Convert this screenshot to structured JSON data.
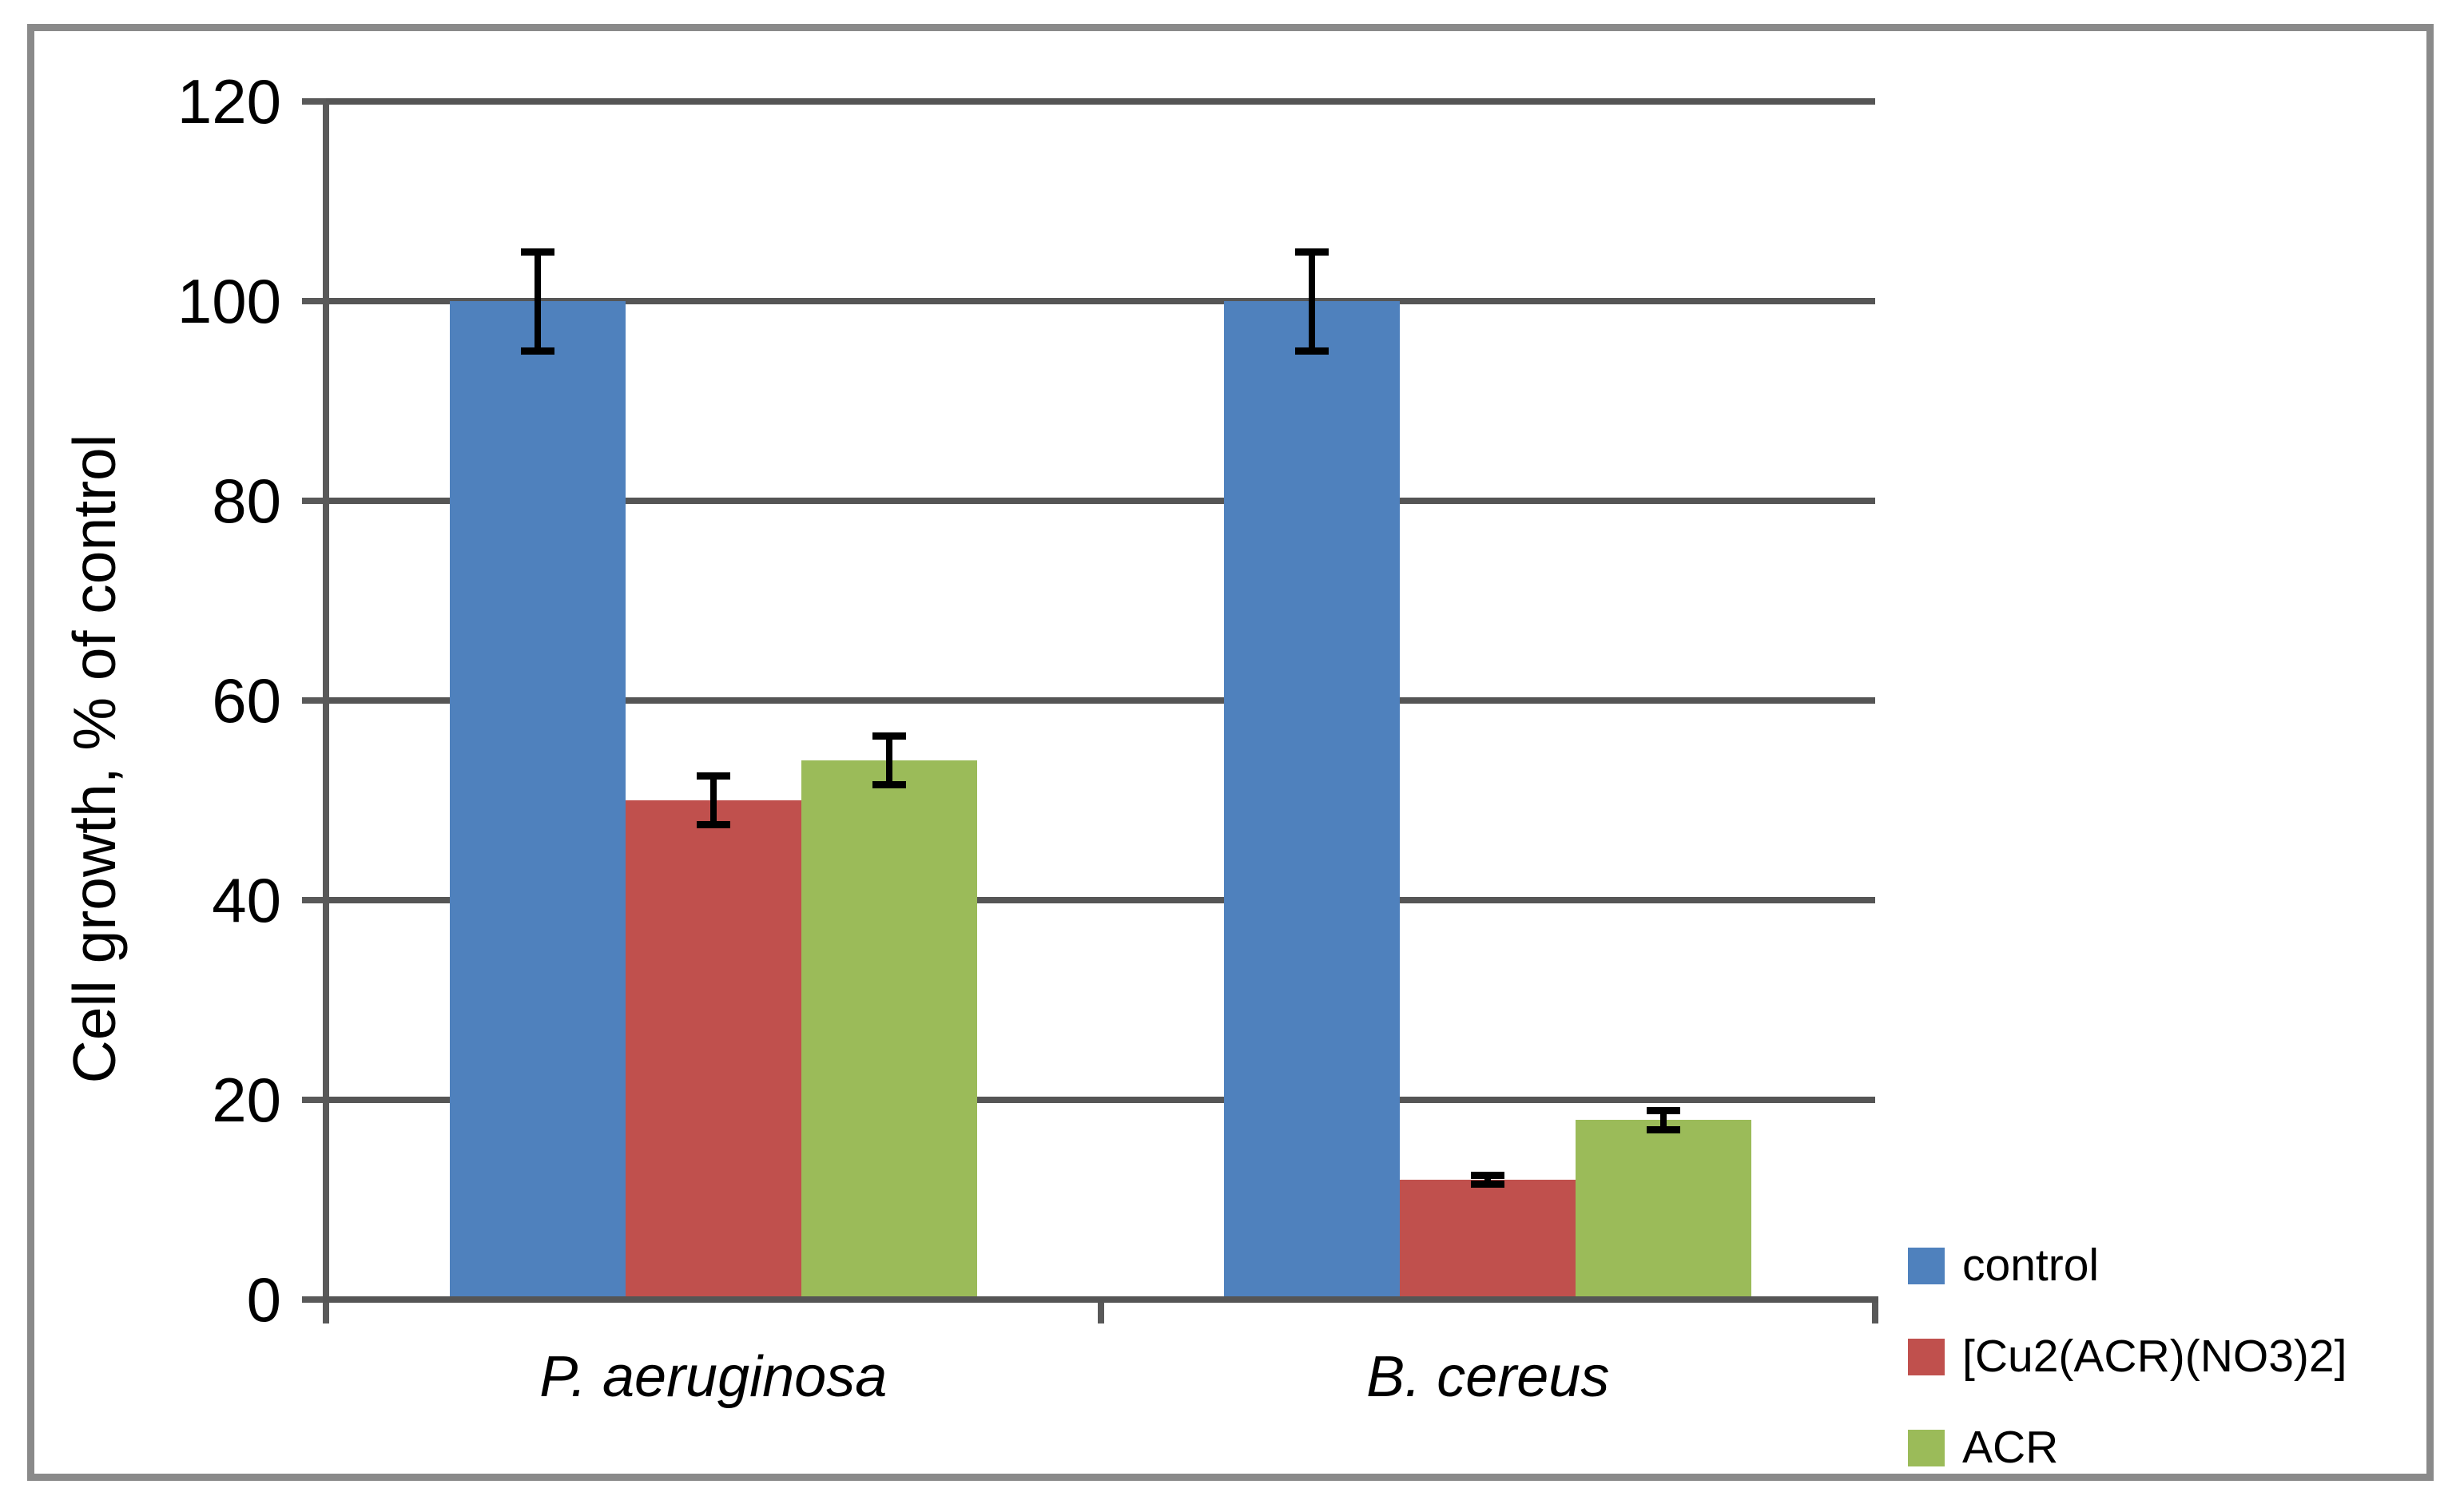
{
  "figure": {
    "background": "#ffffff",
    "border_color": "#8a8a8a"
  },
  "chart_data": {
    "type": "bar",
    "title": "",
    "categories": [
      "P. aeruginosa",
      "B. cereus"
    ],
    "categories_style": "italic",
    "series": [
      {
        "name": "control",
        "color": "#4F81BD",
        "values": [
          100,
          100
        ],
        "errors": [
          5,
          5
        ]
      },
      {
        "name": "[Cu2(ACR)(NO3)2]",
        "color": "#C0504D",
        "values": [
          50,
          12
        ],
        "errors": [
          2.5,
          0.5
        ]
      },
      {
        "name": "ACR",
        "color": "#9BBB59",
        "values": [
          54,
          18
        ],
        "errors": [
          2.5,
          1
        ]
      }
    ],
    "xlabel": "",
    "ylabel": "Cell growth, % of control",
    "ylim": [
      0,
      120
    ],
    "yticks": [
      0,
      20,
      40,
      60,
      80,
      100,
      120
    ],
    "grid": true,
    "grid_color": "#555555",
    "axis_color": "#595959",
    "error_bar_color": "#000000",
    "legend_position": "right-bottom"
  }
}
